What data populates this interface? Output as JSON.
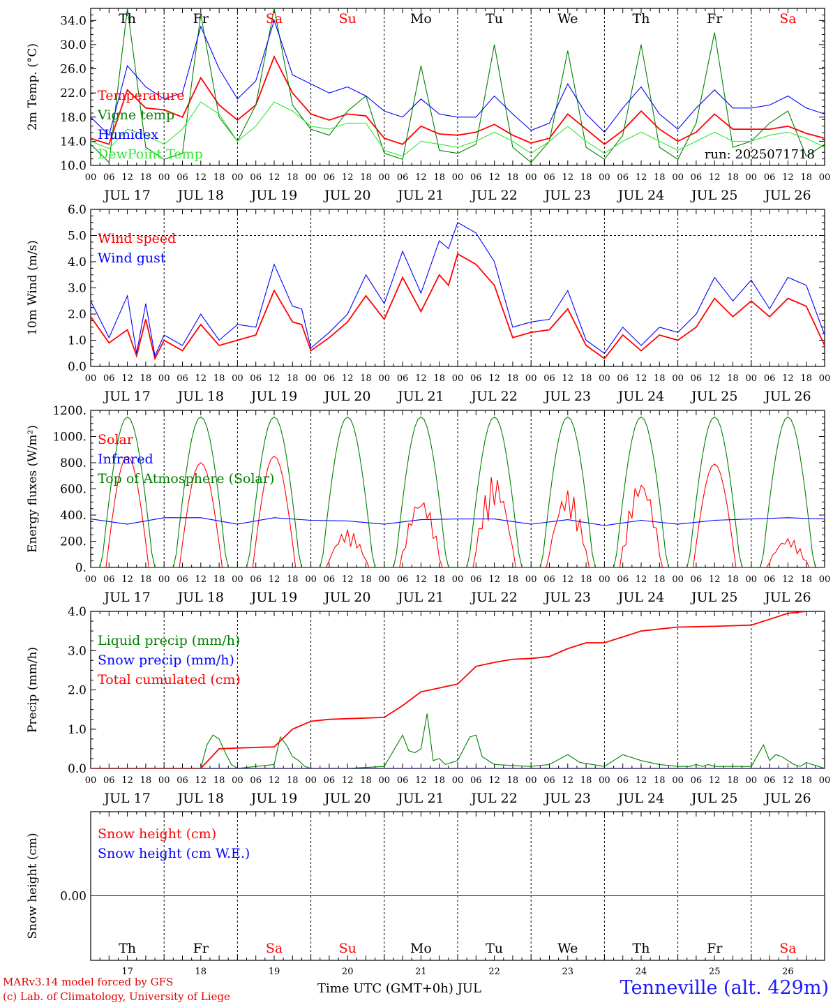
{
  "chart_data": [
    {
      "type": "line",
      "ylabel": "2m Temp. (°C)",
      "ylim": [
        10,
        36
      ],
      "yticks": [
        "10.0",
        "14.0",
        "18.0",
        "22.0",
        "26.0",
        "30.0",
        "34.0"
      ],
      "run_label": "run: 2025071718",
      "x_unit": "hours since JUL 17 00 UTC",
      "series": [
        {
          "name": "Temperature",
          "color": "#ff0000",
          "x": [
            0,
            6,
            12,
            18,
            24,
            30,
            36,
            42,
            48,
            54,
            60,
            66,
            72,
            78,
            84,
            90,
            96,
            102,
            108,
            114,
            120,
            126,
            132,
            138,
            144,
            150,
            156,
            162,
            168,
            174,
            180,
            186,
            192,
            198,
            204,
            210,
            216,
            222,
            228,
            234,
            240
          ],
          "y": [
            14.5,
            13.5,
            22.5,
            19.5,
            19.2,
            18,
            24.5,
            20,
            17.5,
            20,
            28,
            22,
            18.5,
            17.5,
            18.5,
            18.2,
            14.5,
            13.5,
            16.5,
            15.2,
            15,
            15.5,
            16.8,
            15,
            13.7,
            14.5,
            18.5,
            16,
            13.5,
            15.8,
            19,
            16,
            14,
            15.5,
            18.5,
            16,
            16,
            16,
            16.5,
            15.3,
            14.5
          ]
        },
        {
          "name": "Vigne temp",
          "color": "#008000",
          "x": [
            0,
            6,
            12,
            18,
            24,
            30,
            36,
            42,
            48,
            54,
            60,
            66,
            72,
            78,
            84,
            90,
            96,
            102,
            108,
            114,
            120,
            126,
            132,
            138,
            144,
            150,
            156,
            162,
            168,
            174,
            180,
            186,
            192,
            198,
            204,
            210,
            216,
            222,
            228,
            234,
            240
          ],
          "y": [
            13.5,
            10.5,
            36,
            13,
            11,
            12,
            35,
            18,
            14,
            20,
            36,
            20,
            16,
            15,
            19,
            21.5,
            12,
            11,
            26.5,
            12.5,
            12,
            13.5,
            30,
            13,
            10.5,
            14,
            29,
            13,
            11,
            15,
            30,
            13,
            11,
            17,
            32,
            13,
            14,
            17,
            19,
            11.5,
            13.5
          ]
        },
        {
          "name": "Humidex",
          "color": "#0000ff",
          "x": [
            0,
            6,
            12,
            18,
            24,
            30,
            36,
            42,
            48,
            54,
            60,
            66,
            72,
            78,
            84,
            90,
            96,
            102,
            108,
            114,
            120,
            126,
            132,
            138,
            144,
            150,
            156,
            162,
            168,
            174,
            180,
            186,
            192,
            198,
            204,
            210,
            216,
            222,
            228,
            234,
            240
          ],
          "y": [
            18,
            15,
            26.5,
            23,
            21,
            22,
            33,
            26,
            21,
            24,
            34,
            25,
            23.5,
            22,
            23,
            21.5,
            19,
            18,
            21,
            18.5,
            18,
            18,
            21.5,
            18.5,
            15.8,
            17,
            23.5,
            18.5,
            15.5,
            19.5,
            23,
            18.5,
            16,
            19.5,
            22.5,
            19.5,
            19.5,
            20,
            21.5,
            19.5,
            18.5
          ]
        },
        {
          "name": "DewPoint Temp",
          "color": "#32e632",
          "x": [
            0,
            6,
            12,
            18,
            24,
            30,
            36,
            42,
            48,
            54,
            60,
            66,
            72,
            78,
            84,
            90,
            96,
            102,
            108,
            114,
            120,
            126,
            132,
            138,
            144,
            150,
            156,
            162,
            168,
            174,
            180,
            186,
            192,
            198,
            204,
            210,
            216,
            222,
            228,
            234,
            240
          ],
          "y": [
            14,
            12.8,
            16,
            15,
            13.5,
            16,
            20.5,
            18.5,
            14,
            16.5,
            20.5,
            19,
            16.5,
            16,
            17,
            17,
            12.5,
            11.5,
            14,
            13.5,
            13,
            14,
            15.5,
            14,
            12,
            14,
            16.5,
            14,
            12,
            14,
            15.5,
            14,
            12.5,
            14,
            15.5,
            14,
            14,
            15,
            15.5,
            14.5,
            13
          ]
        }
      ]
    },
    {
      "type": "line",
      "ylabel": "10m Wind (m/s)",
      "ylim": [
        0,
        6
      ],
      "yticks": [
        "0.0",
        "1.0",
        "2.0",
        "3.0",
        "4.0",
        "5.0",
        "6.0"
      ],
      "dashed_reference": 5.0,
      "series": [
        {
          "name": "Wind speed",
          "color": "#ff0000",
          "x": [
            0,
            6,
            12,
            15,
            18,
            21,
            24,
            30,
            36,
            42,
            48,
            54,
            60,
            66,
            69,
            72,
            78,
            84,
            90,
            96,
            102,
            108,
            114,
            117,
            120,
            126,
            132,
            138,
            144,
            150,
            156,
            162,
            168,
            174,
            180,
            186,
            192,
            198,
            204,
            210,
            216,
            222,
            228,
            234,
            240
          ],
          "y": [
            1.9,
            0.9,
            1.4,
            0.4,
            1.8,
            0.3,
            1,
            0.6,
            1.6,
            0.8,
            1,
            1.2,
            2.9,
            1.7,
            1.6,
            0.6,
            1.1,
            1.7,
            2.7,
            1.8,
            3.4,
            2.1,
            3.5,
            3.1,
            4.3,
            3.9,
            3.1,
            1.1,
            1.3,
            1.4,
            2.2,
            0.8,
            0.3,
            1.2,
            0.6,
            1.2,
            1,
            1.5,
            2.6,
            1.9,
            2.5,
            1.9,
            2.6,
            2.3,
            0.8
          ]
        },
        {
          "name": "Wind gust",
          "color": "#0000ff",
          "x": [
            0,
            6,
            12,
            15,
            18,
            21,
            24,
            30,
            36,
            42,
            48,
            54,
            60,
            66,
            69,
            72,
            78,
            84,
            90,
            96,
            102,
            108,
            114,
            117,
            120,
            126,
            132,
            138,
            144,
            150,
            156,
            162,
            168,
            174,
            180,
            186,
            192,
            198,
            204,
            210,
            216,
            222,
            228,
            234,
            240
          ],
          "y": [
            2.5,
            1.1,
            2.7,
            0.5,
            2.4,
            0.4,
            1.2,
            0.8,
            2,
            1,
            1.6,
            1.5,
            3.9,
            2.3,
            2.2,
            0.7,
            1.3,
            2,
            3.5,
            2.4,
            4.4,
            2.8,
            4.8,
            4.5,
            5.5,
            5.1,
            4,
            1.5,
            1.7,
            1.8,
            2.9,
            1,
            0.5,
            1.5,
            0.8,
            1.5,
            1.3,
            2,
            3.4,
            2.5,
            3.3,
            2.2,
            3.4,
            3.1,
            1.2
          ]
        }
      ]
    },
    {
      "type": "line",
      "ylabel": "Energy fluxes (W/m²)",
      "ylim": [
        0,
        1200
      ],
      "yticks": [
        "0.",
        "200.",
        "400.",
        "600.",
        "800.",
        "1000.",
        "1200."
      ],
      "series": [
        {
          "name": "Solar",
          "color": "#ff0000",
          "peaks": [
            850,
            800,
            850,
            290,
            550,
            710,
            600,
            700,
            790,
            230
          ]
        },
        {
          "name": "Infrared",
          "color": "#0000ff",
          "x": [
            0,
            12,
            24,
            36,
            48,
            60,
            72,
            84,
            96,
            108,
            120,
            132,
            144,
            156,
            168,
            180,
            192,
            204,
            216,
            228,
            240
          ],
          "y": [
            370,
            330,
            380,
            380,
            330,
            380,
            360,
            355,
            330,
            365,
            370,
            370,
            330,
            365,
            320,
            360,
            330,
            360,
            370,
            380,
            370
          ]
        },
        {
          "name": "Top of Atmosphere (Solar)",
          "color": "#008000",
          "peak": 1150
        }
      ]
    },
    {
      "type": "line",
      "ylabel": "Precip (mm/h)",
      "ylim": [
        0,
        4
      ],
      "yticks": [
        "0.0",
        "1.0",
        "2.0",
        "3.0",
        "4.0"
      ],
      "series": [
        {
          "name": "Liquid precip (mm/h)",
          "color": "#008000",
          "x": [
            0,
            36,
            38,
            40,
            42,
            44,
            46,
            48,
            60,
            62,
            64,
            66,
            68,
            70,
            72,
            78,
            84,
            96,
            102,
            104,
            106,
            108,
            110,
            112,
            114,
            116,
            120,
            124,
            126,
            128,
            132,
            144,
            150,
            156,
            160,
            168,
            174,
            180,
            186,
            192,
            196,
            198,
            200,
            202,
            204,
            210,
            216,
            220,
            222,
            224,
            226,
            228,
            230,
            232,
            234,
            240
          ],
          "y": [
            0,
            0,
            0.6,
            0.85,
            0.75,
            0.4,
            0.1,
            0,
            0.1,
            0.8,
            0.6,
            0.3,
            0.2,
            0.05,
            0,
            0,
            0,
            0.05,
            0.85,
            0.45,
            0.4,
            0.5,
            1.4,
            0.2,
            0.25,
            0.1,
            0.2,
            0.8,
            0.85,
            0.3,
            0.1,
            0.05,
            0.1,
            0.35,
            0.15,
            0.05,
            0.35,
            0.2,
            0.1,
            0.05,
            0.05,
            0.1,
            0.05,
            0.1,
            0.05,
            0.05,
            0.05,
            0.6,
            0.2,
            0.35,
            0.3,
            0.2,
            0.1,
            0.05,
            0.15,
            0
          ]
        },
        {
          "name": "Snow precip (mm/h)",
          "color": "#0000ff",
          "x": [
            0,
            240
          ],
          "y": [
            0,
            0
          ]
        },
        {
          "name": "Total cumulated (cm)",
          "color": "#ff0000",
          "x": [
            0,
            36,
            42,
            48,
            60,
            66,
            72,
            78,
            96,
            102,
            108,
            114,
            120,
            126,
            132,
            138,
            144,
            150,
            156,
            162,
            168,
            174,
            180,
            186,
            192,
            204,
            216,
            222,
            228,
            234,
            240
          ],
          "y": [
            0,
            0,
            0.5,
            0.52,
            0.55,
            1.0,
            1.2,
            1.25,
            1.3,
            1.6,
            1.95,
            2.05,
            2.15,
            2.6,
            2.7,
            2.78,
            2.8,
            2.85,
            3.05,
            3.2,
            3.2,
            3.35,
            3.5,
            3.55,
            3.6,
            3.62,
            3.65,
            3.8,
            3.95,
            4.0,
            4.0
          ]
        }
      ]
    },
    {
      "type": "line",
      "ylabel": "Snow height (cm)",
      "yticks": [
        "0.00"
      ],
      "series": [
        {
          "name": "Snow height (cm)",
          "color": "#ff0000",
          "x": [
            0,
            240
          ],
          "y": [
            0,
            0
          ]
        },
        {
          "name": "Snow height (cm W.E.)",
          "color": "#0000ff",
          "x": [
            0,
            240
          ],
          "y": [
            0,
            0
          ]
        }
      ]
    }
  ],
  "x_axis": {
    "hour_labels": [
      "00",
      "06",
      "12",
      "18"
    ],
    "end_label": "00",
    "dates": [
      "JUL 17",
      "JUL 18",
      "JUL 19",
      "JUL 20",
      "JUL 21",
      "JUL 22",
      "JUL 23",
      "JUL 24",
      "JUL 25",
      "JUL 26"
    ],
    "weekdays": [
      "Th",
      "Fr",
      "Sa",
      "Su",
      "Mo",
      "Tu",
      "We",
      "Th",
      "Fr",
      "Sa"
    ],
    "weekday_colors": [
      "#000000",
      "#000000",
      "#ff0000",
      "#ff0000",
      "#000000",
      "#000000",
      "#000000",
      "#000000",
      "#000000",
      "#ff0000"
    ],
    "day_numbers": [
      "17",
      "18",
      "19",
      "20",
      "21",
      "22",
      "23",
      "24",
      "25",
      "26"
    ],
    "title": "Time UTC (GMT+0h) JUL"
  },
  "footer": {
    "credit_line1": "MARv3.14 model forced by GFS",
    "credit_line2": "(c) Lab. of Climatology, University of Liege",
    "station": "Tenneville (alt. 429m)"
  }
}
